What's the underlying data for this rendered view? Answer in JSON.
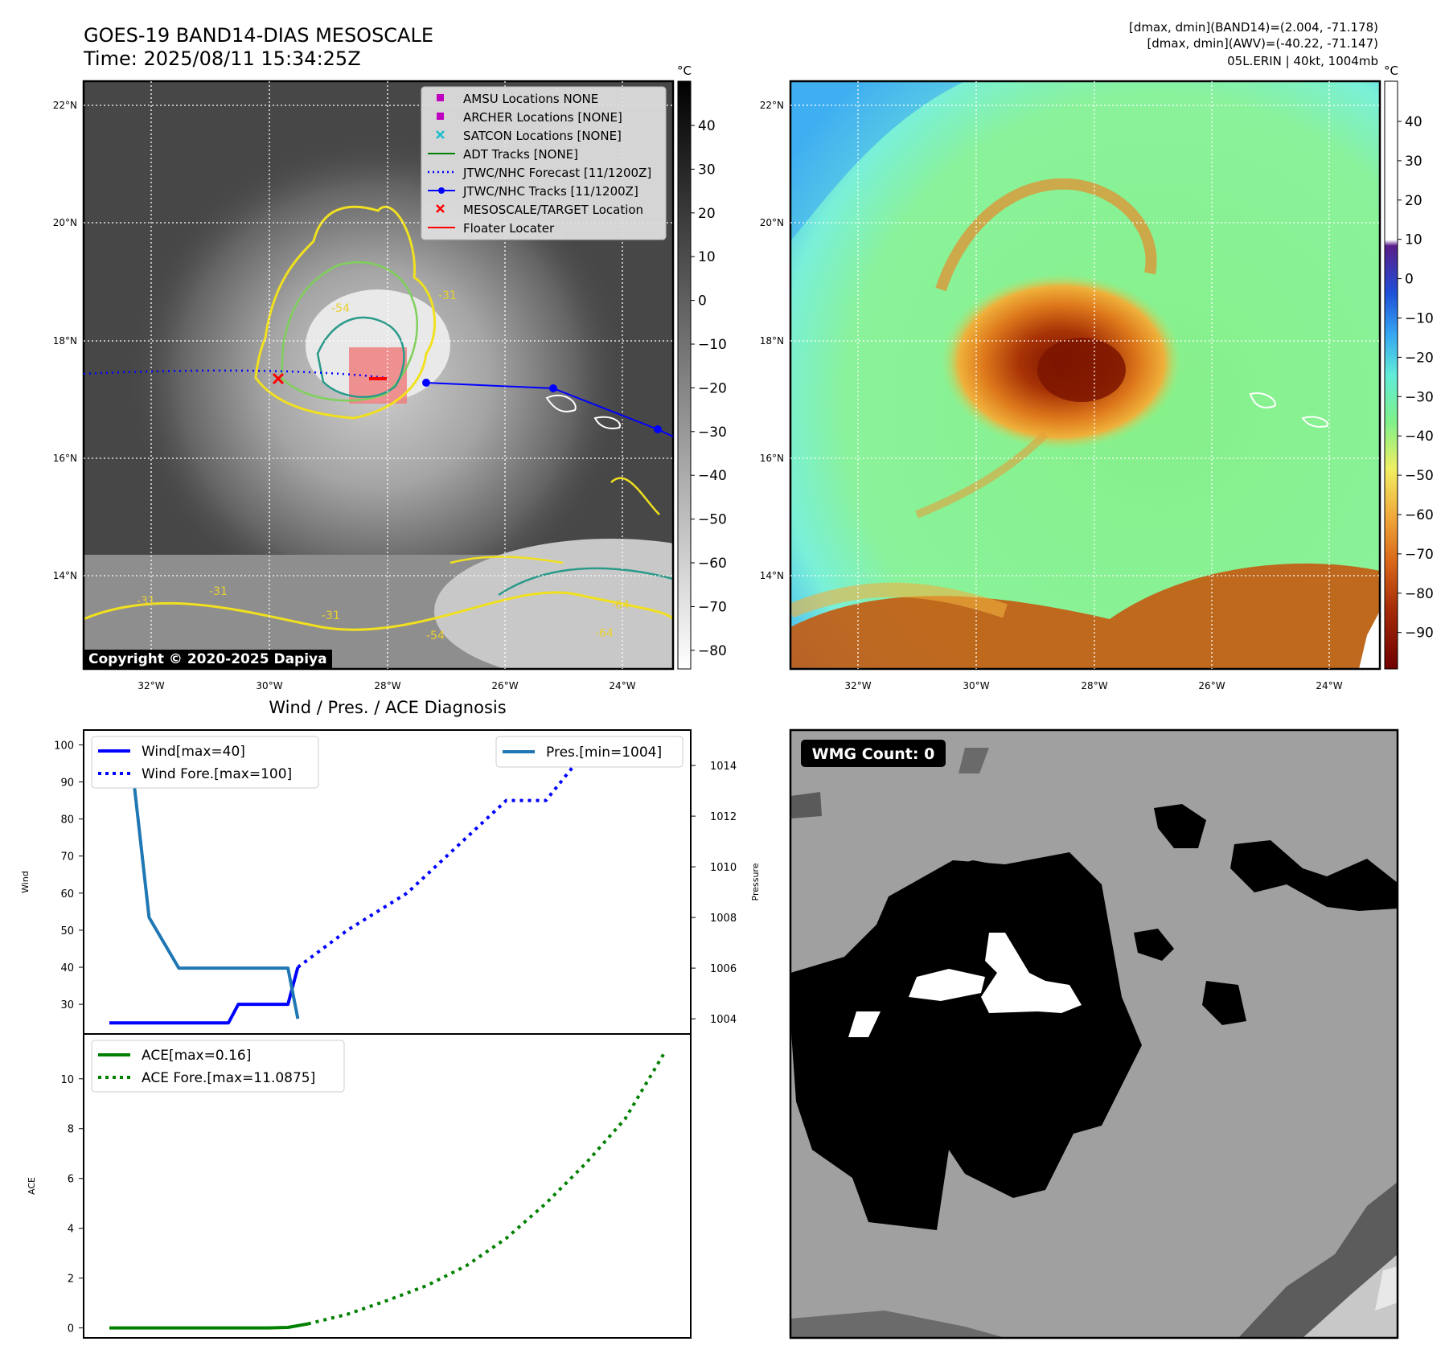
{
  "header": {
    "title": "GOES-19 BAND14-DIAS MESOSCALE",
    "time": "Time: 2025/08/11 15:34:25Z",
    "dmax_band14": "[dmax, dmin](BAND14)=(2.004, -71.178)",
    "dmax_awv": "[dmax, dmin](AWV)=(-40.22, -71.147)",
    "storm": "05L.ERIN | 40kt, 1004mb"
  },
  "map": {
    "lat_labels": [
      "22°N",
      "20°N",
      "18°N",
      "16°N",
      "14°N"
    ],
    "lon_labels": [
      "32°W",
      "30°W",
      "28°W",
      "26°W",
      "24°W"
    ],
    "copyright": "Copyright © 2020-2025 Dapiya",
    "contour_labels": [
      "-31",
      "-54",
      "-31",
      "-31",
      "-31",
      "-64",
      "-54",
      "-64"
    ],
    "legend": [
      {
        "label": "AMSU Locations NONE",
        "color": "#bf00bf",
        "marker": "square"
      },
      {
        "label": "ARCHER Locations [NONE]",
        "color": "#bf00bf",
        "marker": "square"
      },
      {
        "label": "SATCON Locations [NONE]",
        "color": "#17becf",
        "marker": "x"
      },
      {
        "label": "ADT Tracks [NONE]",
        "color": "#008000",
        "marker": "line"
      },
      {
        "label": "JTWC/NHC Forecast [11/1200Z]",
        "color": "#0000ff",
        "marker": "dotted"
      },
      {
        "label": "JTWC/NHC Tracks [11/1200Z]",
        "color": "#0000ff",
        "marker": "line-dot"
      },
      {
        "label": "MESOSCALE/TARGET Location",
        "color": "#ff0000",
        "marker": "x"
      },
      {
        "label": "Floater Locater",
        "color": "#ff0000",
        "marker": "line"
      }
    ]
  },
  "cbar_gray": {
    "unit": "°C",
    "ticks": [
      "40",
      "30",
      "20",
      "10",
      "0",
      "−10",
      "−20",
      "−30",
      "−40",
      "−50",
      "−60",
      "−70",
      "−80"
    ]
  },
  "cbar_color": {
    "unit": "°C",
    "ticks": [
      "40",
      "30",
      "20",
      "10",
      "0",
      "−10",
      "−20",
      "−30",
      "−40",
      "−50",
      "−60",
      "−70",
      "−80",
      "−90"
    ]
  },
  "wmg": {
    "label": "WMG Count: 0"
  },
  "chart_data": [
    {
      "type": "line",
      "title": "Wind / Pres. / ACE Diagnosis",
      "ylabel": "Wind",
      "y2label": "Pressure",
      "ylim": [
        22,
        104
      ],
      "y2lim": [
        1003.4,
        1015.4
      ],
      "yticks": [
        "100",
        "90",
        "80",
        "70",
        "60",
        "50",
        "40",
        "30"
      ],
      "y2ticks": [
        "1014",
        "1012",
        "1010",
        "1008",
        "1006",
        "1004"
      ],
      "series": [
        {
          "name": "Wind[max=40]",
          "color": "#0000ff",
          "style": "solid",
          "values": [
            [
              0,
              25
            ],
            [
              1,
              25
            ],
            [
              2,
              25
            ],
            [
              3,
              25
            ],
            [
              4,
              25
            ],
            [
              5,
              25
            ],
            [
              6,
              25
            ],
            [
              6.5,
              30
            ],
            [
              7,
              30
            ],
            [
              8,
              30
            ],
            [
              9,
              30
            ],
            [
              9.5,
              40
            ]
          ]
        },
        {
          "name": "Wind Fore.[max=100]",
          "color": "#0000ff",
          "style": "dotted",
          "values": [
            [
              9.5,
              40
            ],
            [
              12,
              50
            ],
            [
              15,
              60
            ],
            [
              16,
              65
            ],
            [
              18,
              75
            ],
            [
              20,
              85
            ],
            [
              22,
              85
            ],
            [
              23.5,
              95
            ],
            [
              26,
              100
            ]
          ]
        },
        {
          "name": "Pres.[min=1004]",
          "color": "#1f77b4",
          "style": "solid",
          "axis": "right",
          "values": [
            [
              0,
              1015
            ],
            [
              1,
              1015
            ],
            [
              2,
              1008
            ],
            [
              3.5,
              1006
            ],
            [
              9,
              1006
            ],
            [
              9.5,
              1004
            ]
          ]
        }
      ]
    },
    {
      "type": "line",
      "ylabel": "ACE",
      "ylim": [
        -0.4,
        11.8
      ],
      "yticks": [
        "10",
        "8",
        "6",
        "4",
        "2",
        "0"
      ],
      "series": [
        {
          "name": "ACE[max=0.16]",
          "color": "#008000",
          "style": "solid",
          "values": [
            [
              0,
              0
            ],
            [
              1,
              0
            ],
            [
              2,
              0
            ],
            [
              3,
              0
            ],
            [
              4,
              0
            ],
            [
              5,
              0
            ],
            [
              6,
              0
            ],
            [
              7,
              0
            ],
            [
              8,
              0
            ],
            [
              9,
              0.02
            ],
            [
              10,
              0.16
            ]
          ]
        },
        {
          "name": "ACE Fore.[max=11.0875]",
          "color": "#008000",
          "style": "dotted",
          "values": [
            [
              10,
              0.16
            ],
            [
              12,
              0.55
            ],
            [
              14,
              1.1
            ],
            [
              16,
              1.7
            ],
            [
              18,
              2.5
            ],
            [
              20,
              3.6
            ],
            [
              22,
              5.0
            ],
            [
              24,
              6.6
            ],
            [
              26,
              8.4
            ],
            [
              28,
              11.0875
            ]
          ]
        }
      ]
    }
  ]
}
